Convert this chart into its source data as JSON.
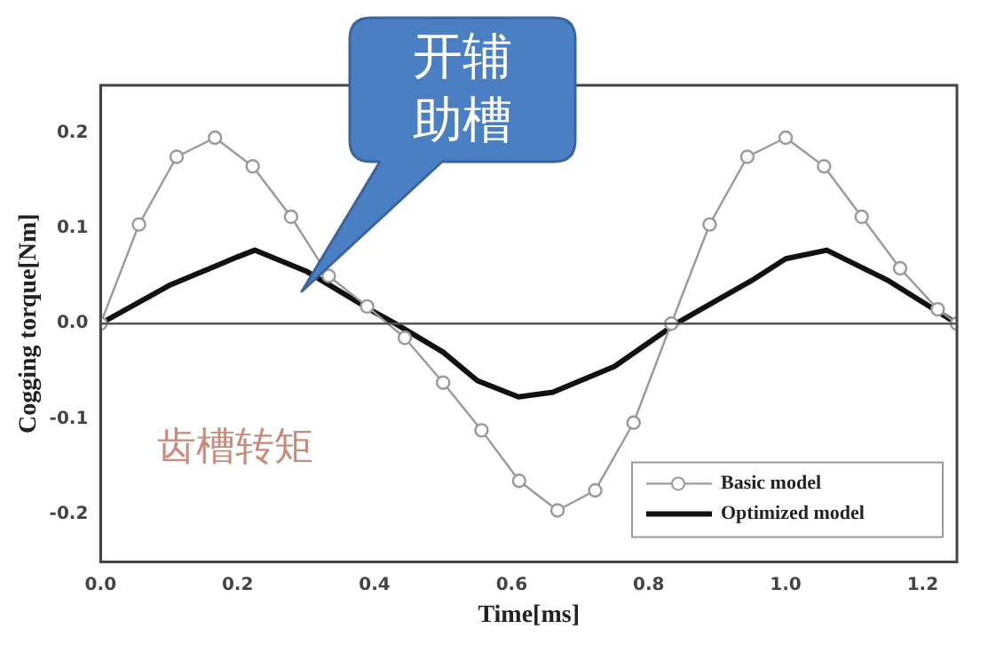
{
  "chart_data": {
    "type": "line",
    "xlabel": "Time[ms]",
    "ylabel": "Cogging torque[Nm]",
    "xlim": [
      0,
      1.25
    ],
    "ylim": [
      -0.25,
      0.25
    ],
    "xticks": [
      {
        "value": 0,
        "label": "0.0"
      },
      {
        "value": 0.2,
        "label": "0.2"
      },
      {
        "value": 0.4,
        "label": "0.4"
      },
      {
        "value": 0.6,
        "label": "0.6"
      },
      {
        "value": 0.8,
        "label": "0.8"
      },
      {
        "value": 1,
        "label": "1.0"
      },
      {
        "value": 1.2,
        "label": "1.2"
      }
    ],
    "yticks": [
      {
        "value": -0.2,
        "label": "-0.2"
      },
      {
        "value": -0.1,
        "label": "-0.1"
      },
      {
        "value": 0,
        "label": "0.0"
      },
      {
        "value": 0.1,
        "label": "0.1"
      },
      {
        "value": 0.2,
        "label": "0.2"
      }
    ],
    "series": [
      {
        "name": "Basic model",
        "color": "#999999",
        "marker": "circle",
        "x": [
          0,
          0.056,
          0.111,
          0.167,
          0.222,
          0.278,
          0.333,
          0.389,
          0.444,
          0.5,
          0.556,
          0.611,
          0.667,
          0.722,
          0.778,
          0.833,
          0.889,
          0.944,
          1.0,
          1.056,
          1.111,
          1.167,
          1.222,
          1.25
        ],
        "values": [
          0,
          0.104,
          0.175,
          0.195,
          0.165,
          0.112,
          0.05,
          0.018,
          -0.015,
          -0.062,
          -0.112,
          -0.165,
          -0.196,
          -0.175,
          -0.104,
          0,
          0.104,
          0.175,
          0.195,
          0.165,
          0.112,
          0.058,
          0.015,
          0
        ]
      },
      {
        "name": "Optimized model",
        "color": "#111111",
        "marker": "none",
        "x": [
          0,
          0.1,
          0.2,
          0.225,
          0.3,
          0.4,
          0.43,
          0.5,
          0.55,
          0.61,
          0.66,
          0.75,
          0.84,
          0.95,
          1.0,
          1.06,
          1.15,
          1.25
        ],
        "values": [
          0,
          0.04,
          0.07,
          0.077,
          0.055,
          0.012,
          0,
          -0.03,
          -0.06,
          -0.077,
          -0.072,
          -0.045,
          0,
          0.045,
          0.068,
          0.077,
          0.045,
          0
        ]
      }
    ],
    "ref_lines": [
      {
        "axis": "y",
        "value": 0,
        "color": "#555555"
      }
    ],
    "annotations": [
      "开辅助槽",
      "齿槽转矩"
    ],
    "grid": false,
    "legend": "bottom right"
  }
}
